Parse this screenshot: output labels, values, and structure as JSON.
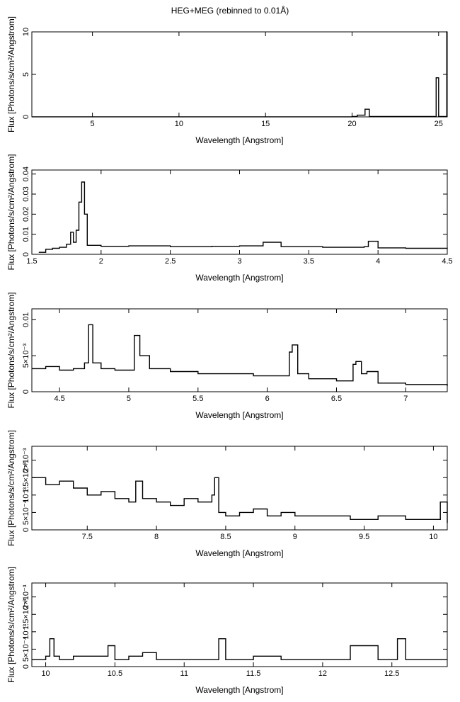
{
  "page": {
    "title": "HEG+MEG (rebinned to 0.01Å)"
  },
  "chart_data": [
    {
      "type": "line",
      "xlabel": "Wavelength [Angstrom]",
      "ylabel": "Flux [Photons/s/cm²/Angstrom]",
      "xlim": [
        1.5,
        25.5
      ],
      "ylim": [
        0,
        10
      ],
      "xticks": [
        5,
        10,
        15,
        20,
        25
      ],
      "yticks": [
        0,
        5,
        10
      ],
      "ytick_labels": [
        "0",
        "5",
        "10"
      ],
      "grid": false,
      "series": [
        {
          "x": [
            1.5,
            5,
            10,
            15,
            20,
            20.3,
            20.75,
            21,
            24.0,
            24.86,
            25.0,
            25.47,
            25.5
          ],
          "y": [
            0.01,
            0.01,
            0.01,
            0.01,
            0.05,
            0.2,
            0.9,
            0.05,
            0.05,
            4.6,
            0.05,
            10.0,
            10.0
          ]
        }
      ]
    },
    {
      "type": "line",
      "xlabel": "Wavelength [Angstrom]",
      "ylabel": "Flux [Photons/s/cm²/Angstrom]",
      "xlim": [
        1.5,
        4.5
      ],
      "ylim": [
        0,
        0.042
      ],
      "xticks": [
        1.5,
        2,
        2.5,
        3,
        3.5,
        4,
        4.5
      ],
      "yticks": [
        0,
        0.01,
        0.02,
        0.03,
        0.04
      ],
      "ytick_labels": [
        "0",
        "0.01",
        "0.02",
        "0.03",
        "0.04"
      ],
      "grid": false,
      "series": [
        {
          "x": [
            1.55,
            1.6,
            1.65,
            1.7,
            1.75,
            1.78,
            1.8,
            1.82,
            1.84,
            1.86,
            1.88,
            1.9,
            2.0,
            2.2,
            2.5,
            2.8,
            3.0,
            3.17,
            3.3,
            3.6,
            3.9,
            3.93,
            4.0,
            4.2,
            4.5
          ],
          "y": [
            0.001,
            0.0025,
            0.003,
            0.0035,
            0.005,
            0.011,
            0.006,
            0.012,
            0.026,
            0.036,
            0.02,
            0.0045,
            0.004,
            0.0042,
            0.0038,
            0.004,
            0.0042,
            0.006,
            0.0038,
            0.0035,
            0.0038,
            0.0065,
            0.0032,
            0.003,
            0.0028
          ]
        }
      ]
    },
    {
      "type": "line",
      "xlabel": "Wavelength [Angstrom]",
      "ylabel": "Flux [Photons/s/cm²/Angstrom]",
      "xlim": [
        4.3,
        7.3
      ],
      "ylim": [
        0,
        0.0115
      ],
      "xticks": [
        4.5,
        5,
        5.5,
        6,
        6.5,
        7
      ],
      "yticks": [
        0,
        0.005,
        0.01
      ],
      "ytick_labels": [
        "0",
        "5×10⁻³",
        "0.01"
      ],
      "grid": false,
      "series": [
        {
          "x": [
            4.3,
            4.4,
            4.5,
            4.6,
            4.68,
            4.71,
            4.74,
            4.8,
            4.9,
            5.0,
            5.04,
            5.08,
            5.15,
            5.3,
            5.5,
            5.7,
            5.9,
            6.1,
            6.16,
            6.18,
            6.22,
            6.3,
            6.5,
            6.62,
            6.64,
            6.68,
            6.72,
            6.8,
            7.0,
            7.3
          ],
          "y": [
            0.0032,
            0.0035,
            0.003,
            0.0032,
            0.004,
            0.0093,
            0.004,
            0.0032,
            0.003,
            0.003,
            0.0078,
            0.005,
            0.0032,
            0.0028,
            0.0025,
            0.0025,
            0.0022,
            0.0022,
            0.0055,
            0.0065,
            0.0025,
            0.0018,
            0.0015,
            0.0038,
            0.0042,
            0.0025,
            0.0028,
            0.0012,
            0.001,
            0.0008
          ]
        }
      ]
    },
    {
      "type": "line",
      "xlabel": "Wavelength [Angstrom]",
      "ylabel": "Flux [Photons/s/cm²/Angstrom]",
      "xlim": [
        7.1,
        10.1
      ],
      "ylim": [
        0,
        0.0024
      ],
      "xticks": [
        7.5,
        8,
        8.5,
        9,
        9.5,
        10
      ],
      "yticks": [
        0,
        0.0005,
        0.001,
        0.0015,
        0.002
      ],
      "ytick_labels": [
        "0",
        "5×10⁻⁴",
        "10⁻³",
        "1.5×10⁻³",
        "2×10⁻³"
      ],
      "grid": false,
      "series": [
        {
          "x": [
            7.1,
            7.2,
            7.3,
            7.4,
            7.5,
            7.6,
            7.7,
            7.8,
            7.85,
            7.9,
            8.0,
            8.1,
            8.2,
            8.3,
            8.4,
            8.42,
            8.45,
            8.5,
            8.6,
            8.7,
            8.8,
            8.9,
            9.0,
            9.2,
            9.4,
            9.6,
            9.8,
            10.0,
            10.05,
            10.1
          ],
          "y": [
            0.0015,
            0.0013,
            0.0014,
            0.0012,
            0.001,
            0.0011,
            0.0009,
            0.0008,
            0.0014,
            0.0009,
            0.0008,
            0.0007,
            0.0009,
            0.0008,
            0.001,
            0.0015,
            0.0005,
            0.0004,
            0.0005,
            0.0006,
            0.0004,
            0.0005,
            0.0004,
            0.0004,
            0.0003,
            0.0004,
            0.0003,
            0.0003,
            0.0008,
            0.0002
          ]
        }
      ]
    },
    {
      "type": "line",
      "xlabel": "Wavelength [Angstrom]",
      "ylabel": "Flux [Photons/s/cm²/Angstrom]",
      "xlim": [
        9.9,
        12.9
      ],
      "ylim": [
        0,
        0.0024
      ],
      "xticks": [
        10,
        10.5,
        11,
        11.5,
        12,
        12.5
      ],
      "yticks": [
        0,
        0.0005,
        0.001,
        0.0015,
        0.002
      ],
      "ytick_labels": [
        "0",
        "5×10⁻⁴",
        "10⁻³",
        "1.5×10⁻³",
        "2×10⁻³"
      ],
      "grid": false,
      "series": [
        {
          "x": [
            9.9,
            10.0,
            10.03,
            10.06,
            10.1,
            10.2,
            10.3,
            10.45,
            10.5,
            10.6,
            10.7,
            10.8,
            11.0,
            11.2,
            11.25,
            11.3,
            11.5,
            11.7,
            12.0,
            12.18,
            12.2,
            12.4,
            12.54,
            12.6,
            12.84,
            12.9
          ],
          "y": [
            0.0002,
            0.0003,
            0.0008,
            0.0003,
            0.0002,
            0.0003,
            0.0003,
            0.0006,
            0.0002,
            0.0003,
            0.0004,
            0.0002,
            0.0002,
            0.0002,
            0.0008,
            0.0002,
            0.0003,
            0.0002,
            0.0002,
            0.0002,
            0.0006,
            0.0002,
            0.0008,
            0.0002,
            0.0002,
            0.0002
          ]
        }
      ]
    }
  ]
}
